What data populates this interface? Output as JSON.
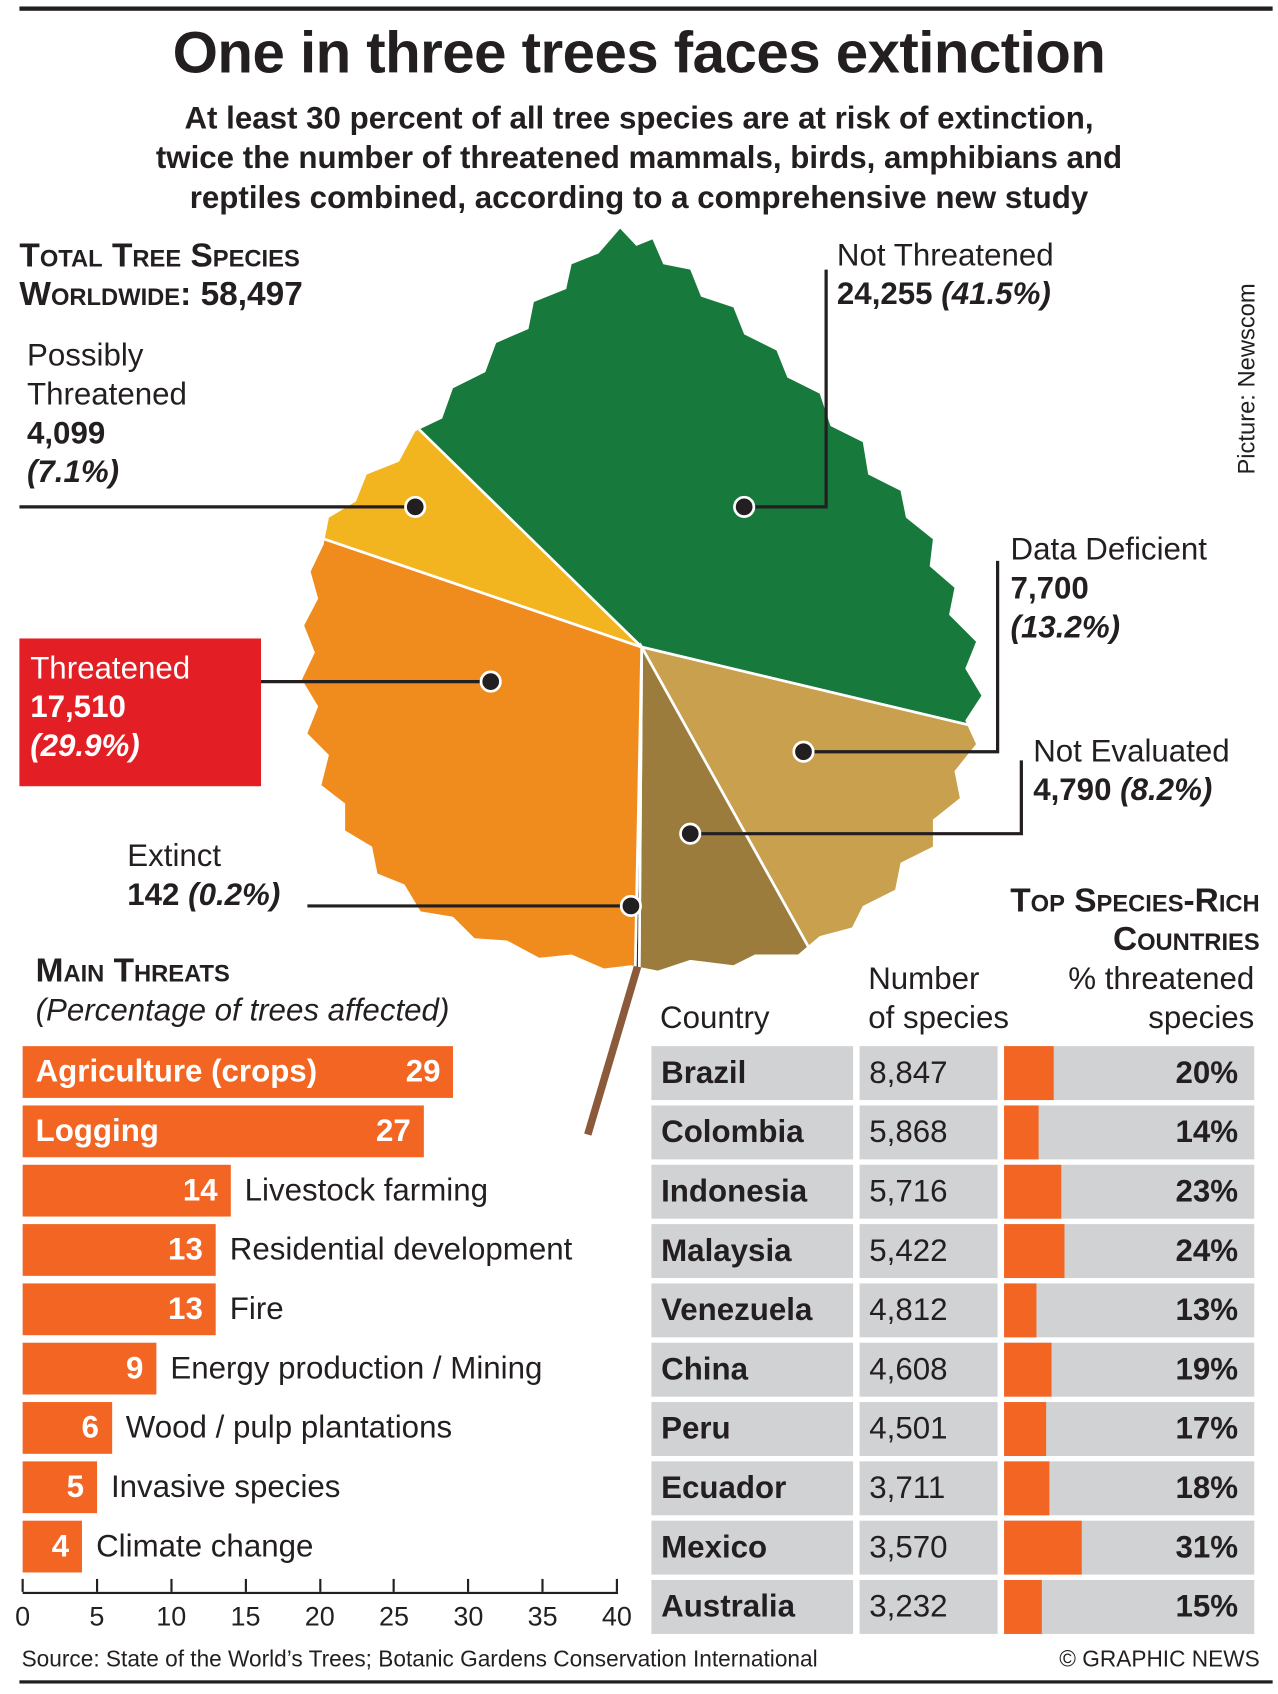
{
  "header": {
    "title": "One in three trees faces extinction",
    "subtitle_lines": [
      "At least 30 percent of all tree species are at risk of extinction,",
      "twice the number of threatened mammals, birds, amphibians and",
      "reptiles combined, according to a comprehensive new study"
    ]
  },
  "total": {
    "line1": "Total Tree Species",
    "line2_label": "Worldwide:",
    "line2_value": "58,497"
  },
  "credit": "Picture: Newscom",
  "leaf": {
    "segments": [
      {
        "name": "Not Threatened",
        "count": "24,255",
        "pct": "(41.5%)",
        "value": 41.5,
        "color": "#177a3c"
      },
      {
        "name": "Data Deficient",
        "count": "7,700",
        "pct": "(13.2%)",
        "value": 13.2,
        "color": "#c9a04e"
      },
      {
        "name": "Not Evaluated",
        "count": "4,790",
        "pct": "(8.2%)",
        "value": 8.2,
        "color": "#9c7c3c"
      },
      {
        "name": "Extinct",
        "count": "142",
        "pct": "(0.2%)",
        "value": 0.2,
        "color": "#2a2a2a"
      },
      {
        "name": "Threatened",
        "count": "17,510",
        "pct": "(29.9%)",
        "value": 29.9,
        "color": "#f08c1e"
      },
      {
        "name": "Possibly Threatened",
        "name_line1": "Possibly",
        "name_line2": "Threatened",
        "count": "4,099",
        "pct": "(7.1%)",
        "value": 7.1,
        "color": "#f2b51f"
      }
    ]
  },
  "chart_data": [
    {
      "type": "bar",
      "title": "Main Threats",
      "subtitle": "(Percentage of trees affected)",
      "categories": [
        "Agriculture (crops)",
        "Logging",
        "Livestock farming",
        "Residential development",
        "Fire",
        "Energy production / Mining",
        "Wood / pulp plantations",
        "Invasive species",
        "Climate change"
      ],
      "values": [
        29,
        27,
        14,
        13,
        13,
        9,
        6,
        5,
        4
      ],
      "xlim": [
        0,
        40
      ],
      "xticks": [
        "0",
        "5",
        "10",
        "15",
        "20",
        "25",
        "30",
        "35",
        "40"
      ],
      "color": "#f26522"
    },
    {
      "type": "table",
      "title_line1": "Top Species-Rich",
      "title_line2": "Countries",
      "headers": {
        "country": "Country",
        "number_line1": "Number",
        "number_line2": "of species",
        "pct_line1": "% threatened",
        "pct_line2": "species"
      },
      "rows": [
        {
          "country": "Brazil",
          "species": "8,847",
          "pct_label": "20%",
          "pct": 20
        },
        {
          "country": "Colombia",
          "species": "5,868",
          "pct_label": "14%",
          "pct": 14
        },
        {
          "country": "Indonesia",
          "species": "5,716",
          "pct_label": "23%",
          "pct": 23
        },
        {
          "country": "Malaysia",
          "species": "5,422",
          "pct_label": "24%",
          "pct": 24
        },
        {
          "country": "Venezuela",
          "species": "4,812",
          "pct_label": "13%",
          "pct": 13
        },
        {
          "country": "China",
          "species": "4,608",
          "pct_label": "19%",
          "pct": 19
        },
        {
          "country": "Peru",
          "species": "4,501",
          "pct_label": "17%",
          "pct": 17
        },
        {
          "country": "Ecuador",
          "species": "3,711",
          "pct_label": "18%",
          "pct": 18
        },
        {
          "country": "Mexico",
          "species": "3,570",
          "pct_label": "31%",
          "pct": 31
        },
        {
          "country": "Australia",
          "species": "3,232",
          "pct_label": "15%",
          "pct": 15
        }
      ]
    }
  ],
  "footer": {
    "source": "Source: State of the World’s Trees; Botanic Gardens Conservation International",
    "copyright": "© GRAPHIC NEWS"
  }
}
